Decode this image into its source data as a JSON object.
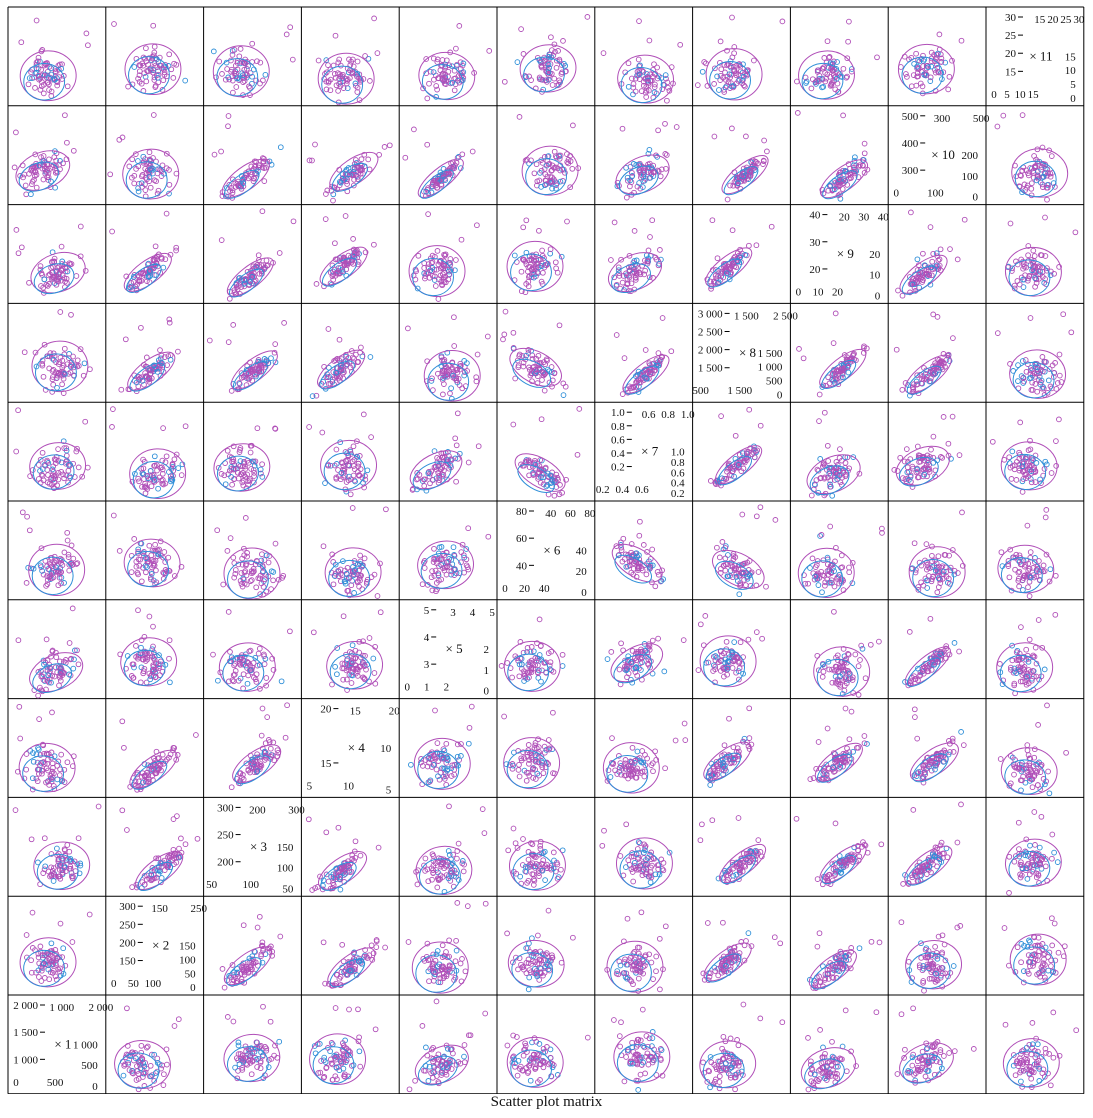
{
  "caption": "Scatter plot matrix",
  "colors": {
    "group_a": "#b04fb8",
    "group_b": "#2f8fd8",
    "frame": "#000000",
    "text": "#111111"
  },
  "chart_data": {
    "type": "scatter",
    "title": "Scatter plot matrix",
    "variables": [
      "x1",
      "x2",
      "x3",
      "x4",
      "x5",
      "x6",
      "x7",
      "x8",
      "x9",
      "x10",
      "x11"
    ],
    "diagonal": {
      "x11": {
        "label": "× 11",
        "top_ticks": [
          "15",
          "20",
          "25",
          "30"
        ],
        "left_ticks": [
          "30",
          "25",
          "20",
          "15"
        ],
        "right_ticks": [
          "15",
          "10",
          "5",
          "0"
        ],
        "bottom_ticks": [
          "0",
          "5",
          "10",
          "15"
        ]
      },
      "x10": {
        "label": "× 10",
        "top_ticks": [
          "300",
          "500"
        ],
        "left_ticks": [
          "500",
          "400",
          "300"
        ],
        "right_ticks": [
          "200",
          "100",
          "0"
        ],
        "bottom_ticks": [
          "0",
          "100"
        ]
      },
      "x9": {
        "label": "× 9",
        "top_ticks": [
          "20",
          "30",
          "40"
        ],
        "left_ticks": [
          "40",
          "30",
          "20"
        ],
        "right_ticks": [
          "20",
          "10",
          "0"
        ],
        "bottom_ticks": [
          "0",
          "10",
          "20"
        ]
      },
      "x8": {
        "label": "× 8",
        "top_ticks": [
          "1 500",
          "2 500"
        ],
        "left_ticks": [
          "3 000",
          "2 500",
          "2 000",
          "1 500"
        ],
        "right_ticks": [
          "1 500",
          "1 000",
          "500",
          "0"
        ],
        "bottom_ticks": [
          "500",
          "1 500"
        ]
      },
      "x7": {
        "label": "× 7",
        "top_ticks": [
          "0.6",
          "0.8",
          "1.0"
        ],
        "left_ticks": [
          "1.0",
          "0.8",
          "0.6",
          "0.4",
          "0.2"
        ],
        "right_ticks": [
          "1.0",
          "0.8",
          "0.6",
          "0.4",
          "0.2"
        ],
        "bottom_ticks": [
          "0.2",
          "0.4",
          "0.6"
        ]
      },
      "x6": {
        "label": "× 6",
        "top_ticks": [
          "40",
          "60",
          "80"
        ],
        "left_ticks": [
          "80",
          "60",
          "40"
        ],
        "right_ticks": [
          "40",
          "20",
          "0"
        ],
        "bottom_ticks": [
          "0",
          "20",
          "40"
        ]
      },
      "x5": {
        "label": "× 5",
        "top_ticks": [
          "3",
          "4",
          "5"
        ],
        "left_ticks": [
          "5",
          "4",
          "3"
        ],
        "right_ticks": [
          "2",
          "1",
          "0"
        ],
        "bottom_ticks": [
          "0",
          "1",
          "2"
        ]
      },
      "x4": {
        "label": "× 4",
        "top_ticks": [
          "15",
          "20"
        ],
        "left_ticks": [
          "20",
          "15"
        ],
        "right_ticks": [
          "10",
          "5"
        ],
        "bottom_ticks": [
          "5",
          "10"
        ]
      },
      "x3": {
        "label": "× 3",
        "top_ticks": [
          "200",
          "300"
        ],
        "left_ticks": [
          "300",
          "250",
          "200"
        ],
        "right_ticks": [
          "150",
          "100",
          "50"
        ],
        "bottom_ticks": [
          "50",
          "100"
        ]
      },
      "x2": {
        "label": "× 2",
        "top_ticks": [
          "150",
          "250"
        ],
        "left_ticks": [
          "300",
          "250",
          "200",
          "150"
        ],
        "right_ticks": [
          "150",
          "100",
          "50",
          "0"
        ],
        "bottom_ticks": [
          "0",
          "50",
          "100"
        ]
      },
      "x1": {
        "label": "× 1",
        "top_ticks": [
          "1 000",
          "2 000"
        ],
        "left_ticks": [
          "2 000",
          "1 500",
          "1 000"
        ],
        "right_ticks": [
          "1 000",
          "500",
          "0"
        ],
        "bottom_ticks": [
          "0",
          "500"
        ]
      }
    },
    "layout": "anti-diagonal",
    "groups": [
      "group_a",
      "group_b"
    ],
    "ellipse_per_group": true,
    "grid": false,
    "legend": "none"
  }
}
